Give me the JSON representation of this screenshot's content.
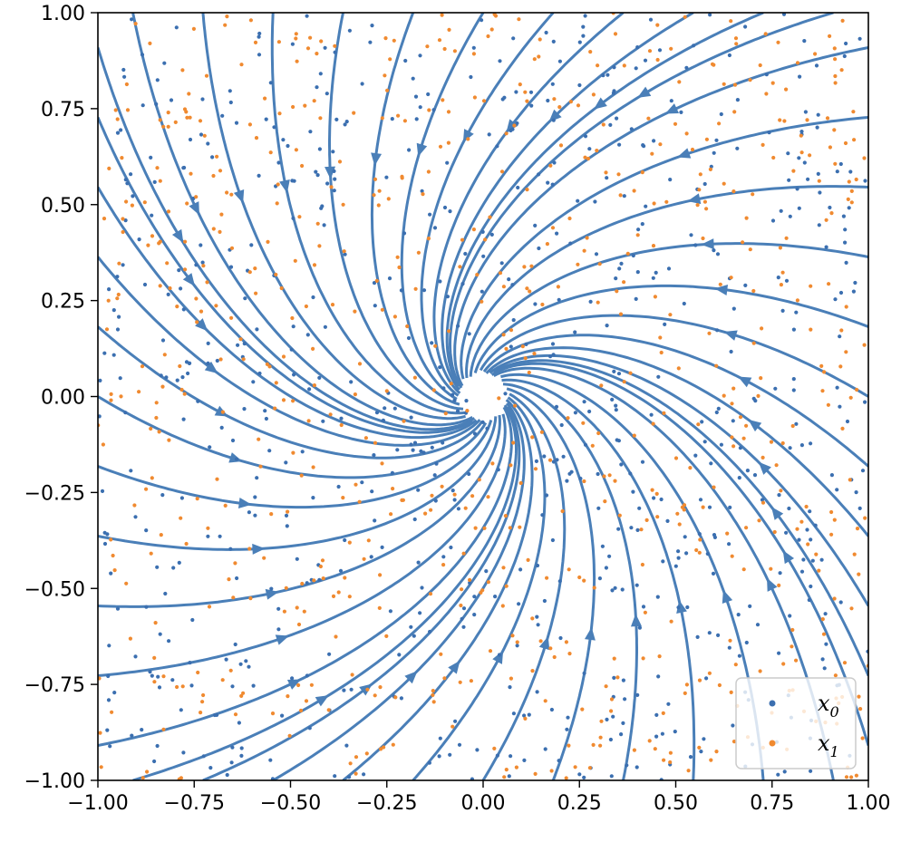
{
  "chart_data": {
    "type": "scatter",
    "overlay": "streamplot",
    "xlim": [
      -1.0,
      1.0
    ],
    "ylim": [
      -1.0,
      1.0
    ],
    "x_ticks": [
      "−1.00",
      "−0.75",
      "−0.50",
      "−0.25",
      "0.00",
      "0.25",
      "0.50",
      "0.75",
      "1.00"
    ],
    "y_ticks": [
      "1.00",
      "0.75",
      "0.50",
      "0.25",
      "0.00",
      "−0.25",
      "−0.50",
      "−0.75",
      "−1.00"
    ],
    "grid": false,
    "legend_position": "lower-right",
    "stream_color": "#4a7fb8",
    "field": {
      "description": "sink-like flow spiralling into the origin",
      "u": "-x - 0.6*y",
      "v": "-y + 0.6*x",
      "sink": [
        0.0,
        0.0
      ]
    },
    "series": [
      {
        "name": "0",
        "color": "#3b6fb0",
        "count": 700
      },
      {
        "name": "1",
        "color": "#f08a30",
        "count": 700
      }
    ],
    "legend": [
      {
        "symbol": "x",
        "sub": "0",
        "color": "#3b6fb0"
      },
      {
        "symbol": "x",
        "sub": "1",
        "color": "#f08a30"
      }
    ]
  }
}
